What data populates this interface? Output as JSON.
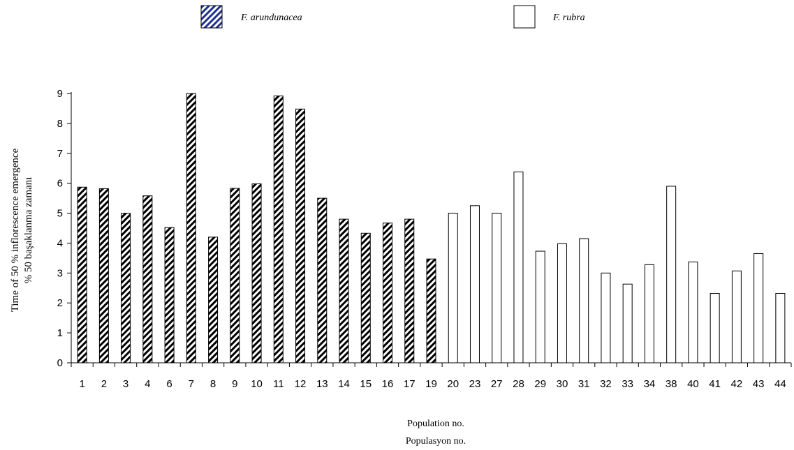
{
  "chart_data": {
    "type": "bar",
    "categories": [
      "1",
      "2",
      "3",
      "4",
      "6",
      "7",
      "8",
      "9",
      "10",
      "11",
      "12",
      "13",
      "14",
      "15",
      "16",
      "17",
      "19",
      "20",
      "23",
      "27",
      "28",
      "29",
      "30",
      "31",
      "32",
      "33",
      "34",
      "38",
      "40",
      "41",
      "42",
      "43",
      "44"
    ],
    "values": [
      5.87,
      5.82,
      5.0,
      5.58,
      4.52,
      9.0,
      4.2,
      5.83,
      5.98,
      8.92,
      8.48,
      5.5,
      4.8,
      4.33,
      4.67,
      4.8,
      3.47,
      5.0,
      5.25,
      5.0,
      6.38,
      3.73,
      3.98,
      4.15,
      3.0,
      2.63,
      3.28,
      5.9,
      3.37,
      2.32,
      3.07,
      3.65,
      2.32
    ],
    "species": [
      "arundunacea",
      "arundunacea",
      "arundunacea",
      "arundunacea",
      "arundunacea",
      "arundunacea",
      "arundunacea",
      "arundunacea",
      "arundunacea",
      "arundunacea",
      "arundunacea",
      "arundunacea",
      "arundunacea",
      "arundunacea",
      "arundunacea",
      "arundunacea",
      "arundunacea",
      "rubra",
      "rubra",
      "rubra",
      "rubra",
      "rubra",
      "rubra",
      "rubra",
      "rubra",
      "rubra",
      "rubra",
      "rubra",
      "rubra",
      "rubra",
      "rubra",
      "rubra",
      "rubra"
    ],
    "legend": [
      {
        "key": "arundunacea",
        "label": "F. arundunacea",
        "fill": "hatched"
      },
      {
        "key": "rubra",
        "label": "F. rubra",
        "fill": "white"
      }
    ],
    "ylabel_line1": "Time of 50 % inflorescence emergence",
    "ylabel_line2": "% 50 başaklanma zamanı",
    "xlabel_line1": "Population no.",
    "xlabel_line2": "Populasyon no.",
    "ylim": [
      0,
      9
    ],
    "yticks": [
      0,
      1,
      2,
      3,
      4,
      5,
      6,
      7,
      8,
      9
    ],
    "grid": false,
    "legend_position": "top"
  }
}
